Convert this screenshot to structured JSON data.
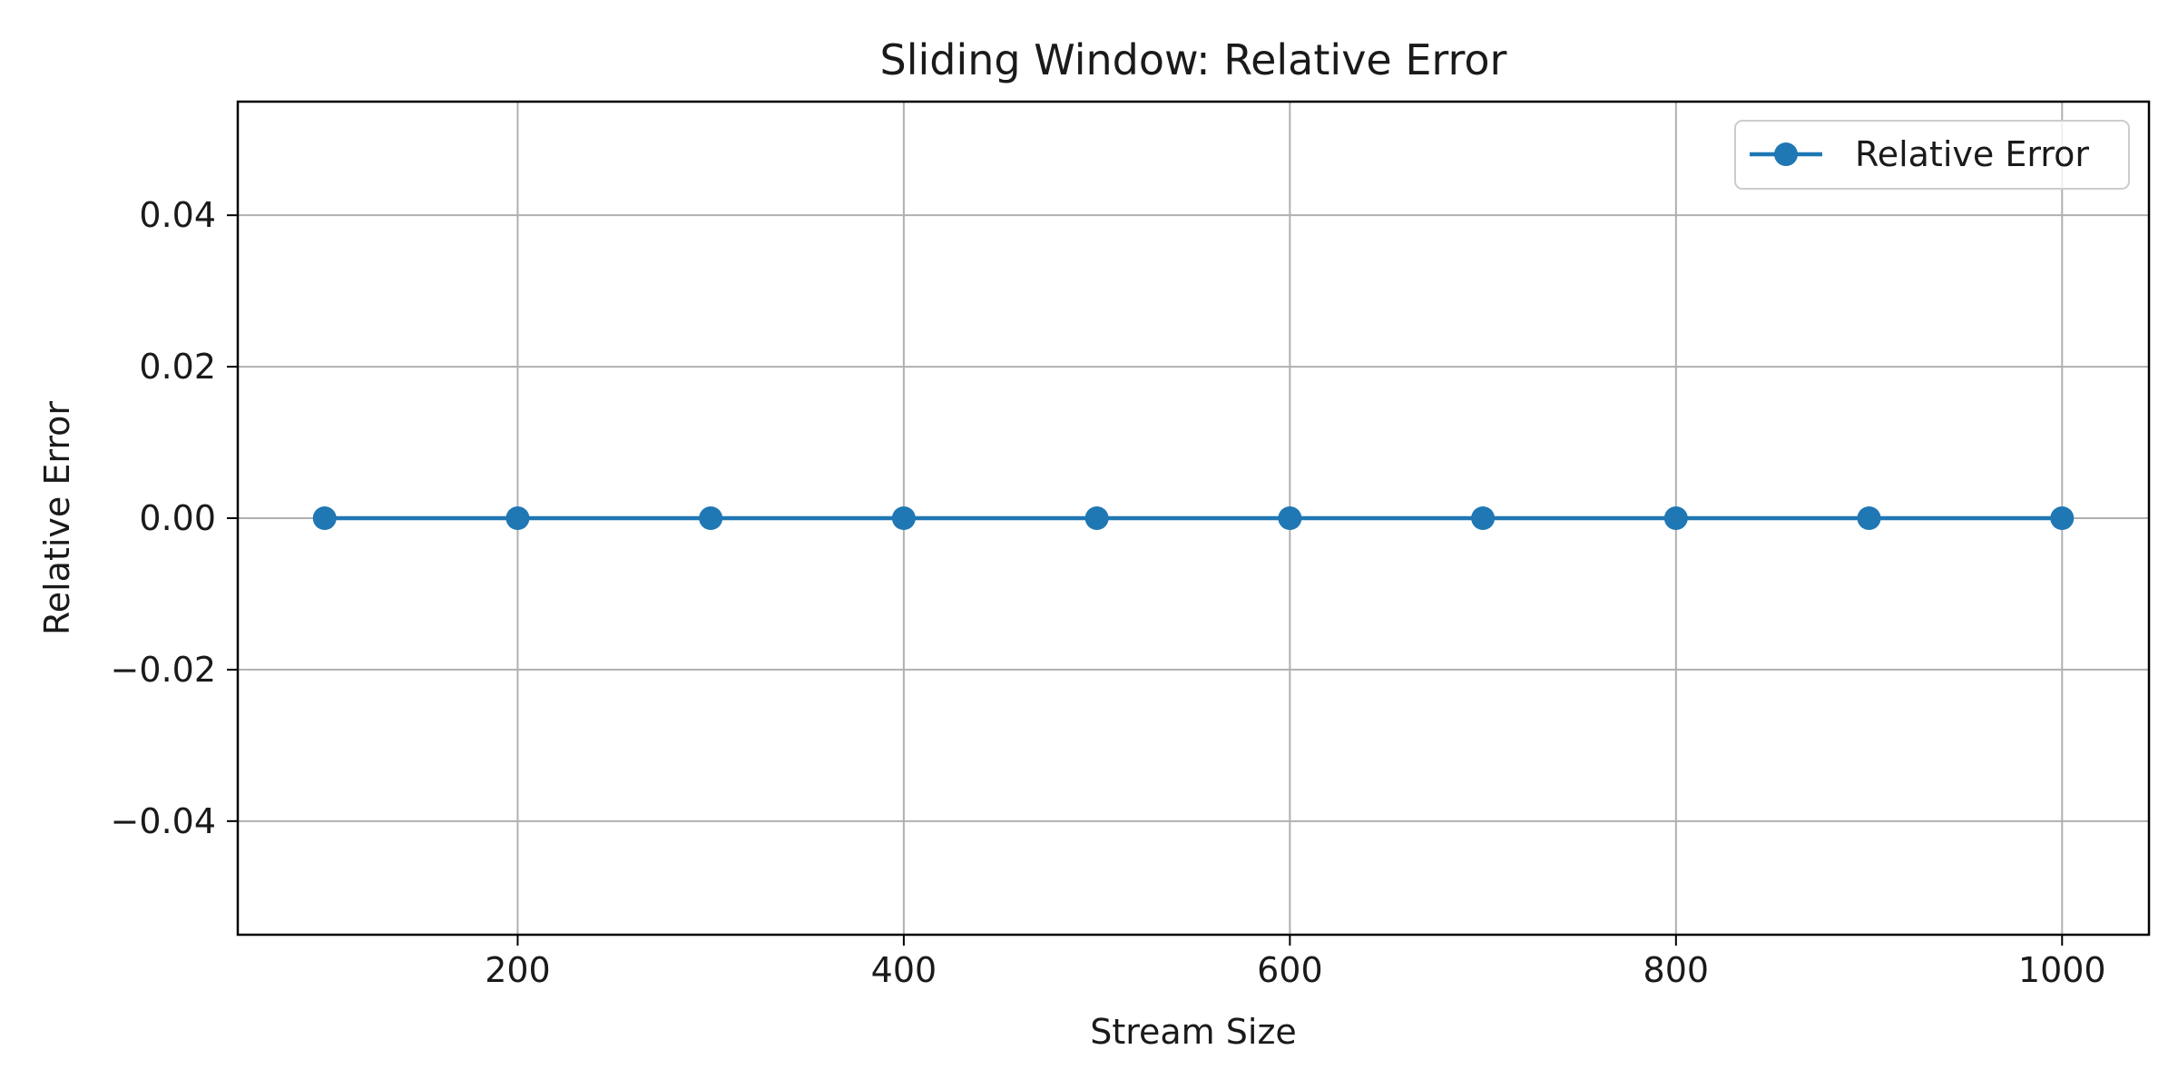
{
  "chart_data": {
    "type": "line",
    "title": "Sliding Window: Relative Error",
    "xlabel": "Stream Size",
    "ylabel": "Relative Error",
    "x": [
      100,
      200,
      300,
      400,
      500,
      600,
      700,
      800,
      900,
      1000
    ],
    "series": [
      {
        "name": "Relative Error",
        "values": [
          0,
          0,
          0,
          0,
          0,
          0,
          0,
          0,
          0,
          0
        ],
        "color": "#1f77b4",
        "marker": "circle"
      }
    ],
    "xlim": [
      55,
      1045
    ],
    "ylim": [
      -0.055,
      0.055
    ],
    "xticks": [
      200,
      400,
      600,
      800,
      1000
    ],
    "xtick_labels": [
      "200",
      "400",
      "600",
      "800",
      "1000"
    ],
    "yticks": [
      0.04,
      0.02,
      0.0,
      -0.02,
      -0.04
    ],
    "ytick_labels": [
      "0.04",
      "0.02",
      "0.00",
      "−0.02",
      "−0.04"
    ],
    "grid": true,
    "legend_position": "upper right",
    "colors": {
      "grid": "#b0b0b0",
      "axes": "#000000",
      "legend_border": "#cccccc"
    }
  }
}
